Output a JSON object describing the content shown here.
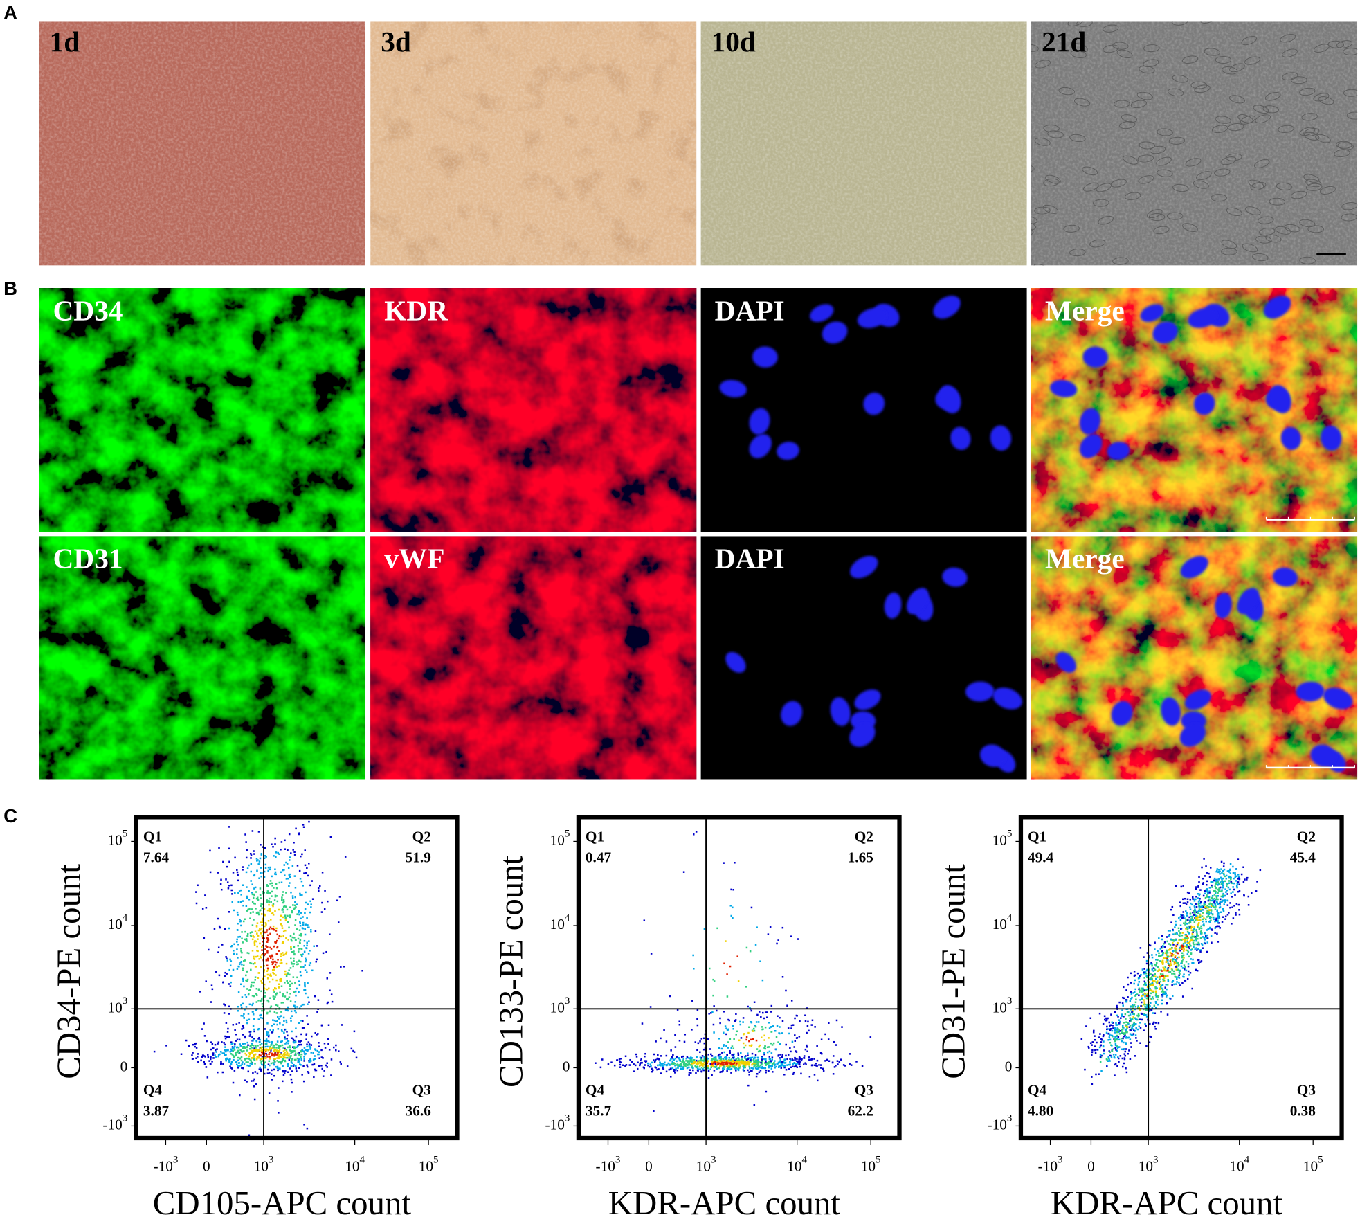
{
  "panel_a": {
    "label": "A",
    "images": [
      {
        "label": "1d"
      },
      {
        "label": "3d"
      },
      {
        "label": "10d"
      },
      {
        "label": "21d"
      }
    ]
  },
  "panel_b": {
    "label": "B",
    "rows": [
      [
        "CD34",
        "KDR",
        "DAPI",
        "Merge"
      ],
      [
        "CD31",
        "vWF",
        "DAPI",
        "Merge"
      ]
    ]
  },
  "panel_c": {
    "label": "C",
    "yticks": [
      {
        "base": "10",
        "exp": "5"
      },
      {
        "base": "10",
        "exp": "4"
      },
      {
        "base": "10",
        "exp": "3"
      },
      "0",
      {
        "base": "-10",
        "exp": "3"
      }
    ],
    "xticks": [
      {
        "base": "-10",
        "exp": "3"
      },
      "0",
      {
        "base": "10",
        "exp": "3"
      },
      {
        "base": "10",
        "exp": "4"
      },
      {
        "base": "10",
        "exp": "5"
      }
    ],
    "plots": [
      {
        "y_label": "CD34-PE count",
        "x_label": "CD105-APC count",
        "quadrants": [
          {
            "name": "Q1",
            "value": "7.64"
          },
          {
            "name": "Q2",
            "value": "51.9"
          },
          {
            "name": "Q3",
            "value": "36.6"
          },
          {
            "name": "Q4",
            "value": "3.87"
          }
        ]
      },
      {
        "y_label": "CD133-PE count",
        "x_label": "KDR-APC count",
        "quadrants": [
          {
            "name": "Q1",
            "value": "0.47"
          },
          {
            "name": "Q2",
            "value": "1.65"
          },
          {
            "name": "Q3",
            "value": "62.2"
          },
          {
            "name": "Q4",
            "value": "35.7"
          }
        ]
      },
      {
        "y_label": "CD31-PE count",
        "x_label": "KDR-APC count",
        "quadrants": [
          {
            "name": "Q1",
            "value": "49.4"
          },
          {
            "name": "Q2",
            "value": "45.4"
          },
          {
            "name": "Q3",
            "value": "0.38"
          },
          {
            "name": "Q4",
            "value": "4.80"
          }
        ]
      }
    ]
  }
}
